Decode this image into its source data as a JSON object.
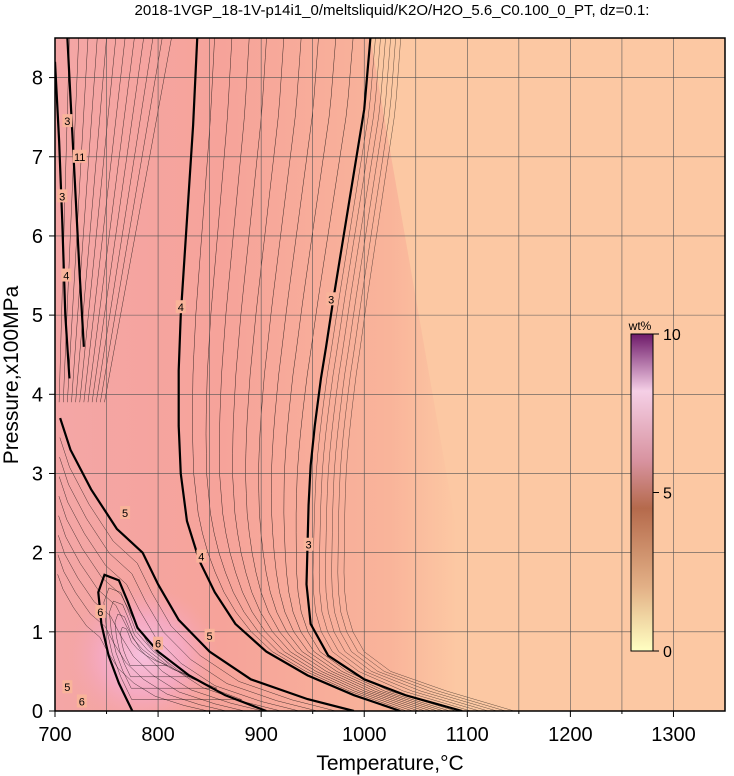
{
  "chart_data": {
    "type": "heatmap",
    "title": "2018-1VGP_18-1V-p14i1_0/meltsliquid/K2O/H2O_5.6_C0.100_0_PT, dz=0.1:",
    "xlabel": "Temperature,°C",
    "ylabel": "Pressure,x100MPa",
    "xlim": [
      700,
      1350
    ],
    "ylim": [
      0,
      8.5
    ],
    "x_ticks": [
      700,
      800,
      900,
      1000,
      1100,
      1200,
      1300
    ],
    "y_ticks": [
      0,
      1,
      2,
      3,
      4,
      5,
      6,
      7,
      8
    ],
    "grid": true,
    "colorbar": {
      "unit": "wt%",
      "min": 0,
      "max": 10,
      "ticks": [
        0,
        5,
        10
      ]
    },
    "contours": [
      {
        "level": "3",
        "points": [
          [
            1095,
            0.0
          ],
          [
            1040,
            0.2
          ],
          [
            1000,
            0.4
          ],
          [
            965,
            0.7
          ],
          [
            948,
            1.1
          ],
          [
            944,
            1.6
          ],
          [
            945,
            2.1
          ],
          [
            946,
            2.6
          ],
          [
            948,
            3.1
          ],
          [
            952,
            3.6
          ],
          [
            958,
            4.2
          ],
          [
            963,
            4.6
          ],
          [
            970,
            5.2
          ],
          [
            980,
            6.0
          ],
          [
            990,
            6.8
          ],
          [
            1000,
            7.6
          ],
          [
            1006,
            8.5
          ]
        ]
      },
      {
        "level": "4",
        "points": [
          [
            1035,
            0.0
          ],
          [
            990,
            0.2
          ],
          [
            945,
            0.45
          ],
          [
            905,
            0.75
          ],
          [
            875,
            1.1
          ],
          [
            855,
            1.5
          ],
          [
            840,
            1.9
          ],
          [
            828,
            2.4
          ],
          [
            822,
            3.0
          ],
          [
            820,
            3.6
          ],
          [
            820,
            4.3
          ],
          [
            822,
            5.0
          ],
          [
            826,
            5.8
          ],
          [
            830,
            6.6
          ],
          [
            834,
            7.4
          ],
          [
            838,
            8.5
          ]
        ]
      },
      {
        "level": "5",
        "points": [
          [
            990,
            0.0
          ],
          [
            945,
            0.15
          ],
          [
            890,
            0.4
          ],
          [
            850,
            0.75
          ],
          [
            820,
            1.15
          ],
          [
            800,
            1.6
          ],
          [
            785,
            2.0
          ],
          [
            760,
            2.3
          ],
          [
            735,
            2.8
          ],
          [
            715,
            3.3
          ],
          [
            705,
            3.7
          ]
        ]
      },
      {
        "level": "6",
        "points": [
          [
            905,
            0.0
          ],
          [
            865,
            0.2
          ],
          [
            830,
            0.45
          ],
          [
            800,
            0.75
          ],
          [
            780,
            1.05
          ],
          [
            770,
            1.4
          ],
          [
            762,
            1.65
          ],
          [
            748,
            1.72
          ],
          [
            742,
            1.5
          ],
          [
            745,
            1.1
          ],
          [
            752,
            0.7
          ],
          [
            762,
            0.35
          ],
          [
            775,
            0.0
          ]
        ]
      },
      {
        "level": "3",
        "points": [
          [
            700,
            8.2
          ],
          [
            704,
            7.2
          ],
          [
            707,
            6.2
          ],
          [
            710,
            5.0
          ],
          [
            714,
            4.2
          ]
        ]
      },
      {
        "level": "4",
        "points": [
          [
            712,
            8.5
          ],
          [
            716,
            7.5
          ],
          [
            720,
            6.5
          ],
          [
            724,
            5.5
          ],
          [
            728,
            4.6
          ]
        ]
      }
    ],
    "contour_labels": [
      {
        "text": "3",
        "x": 968,
        "y": 5.2
      },
      {
        "text": "3",
        "x": 946,
        "y": 2.1
      },
      {
        "text": "4",
        "x": 822,
        "y": 5.1
      },
      {
        "text": "4",
        "x": 842,
        "y": 1.95
      },
      {
        "text": "5",
        "x": 768,
        "y": 2.5
      },
      {
        "text": "5",
        "x": 850,
        "y": 0.95
      },
      {
        "text": "6",
        "x": 800,
        "y": 0.85
      },
      {
        "text": "6",
        "x": 744,
        "y": 1.25
      },
      {
        "text": "3",
        "x": 712,
        "y": 7.45
      },
      {
        "text": "11",
        "x": 722,
        "y": 7.0
      },
      {
        "text": "3",
        "x": 707,
        "y": 6.5
      },
      {
        "text": "4",
        "x": 711,
        "y": 5.5
      },
      {
        "text": "5",
        "x": 712,
        "y": 0.3
      },
      {
        "text": "6",
        "x": 726,
        "y": 0.12
      }
    ],
    "colors": {
      "background_high_T": "#fcc8a3",
      "mid": "#f9a896",
      "low_T_high_P": "#f59e99",
      "peak": "#f4b4cf",
      "colorbar_stops": [
        "#ffffc2",
        "#e3b187",
        "#b56a4c",
        "#d893a0",
        "#f5cfe6",
        "#6e1a6a"
      ]
    }
  }
}
